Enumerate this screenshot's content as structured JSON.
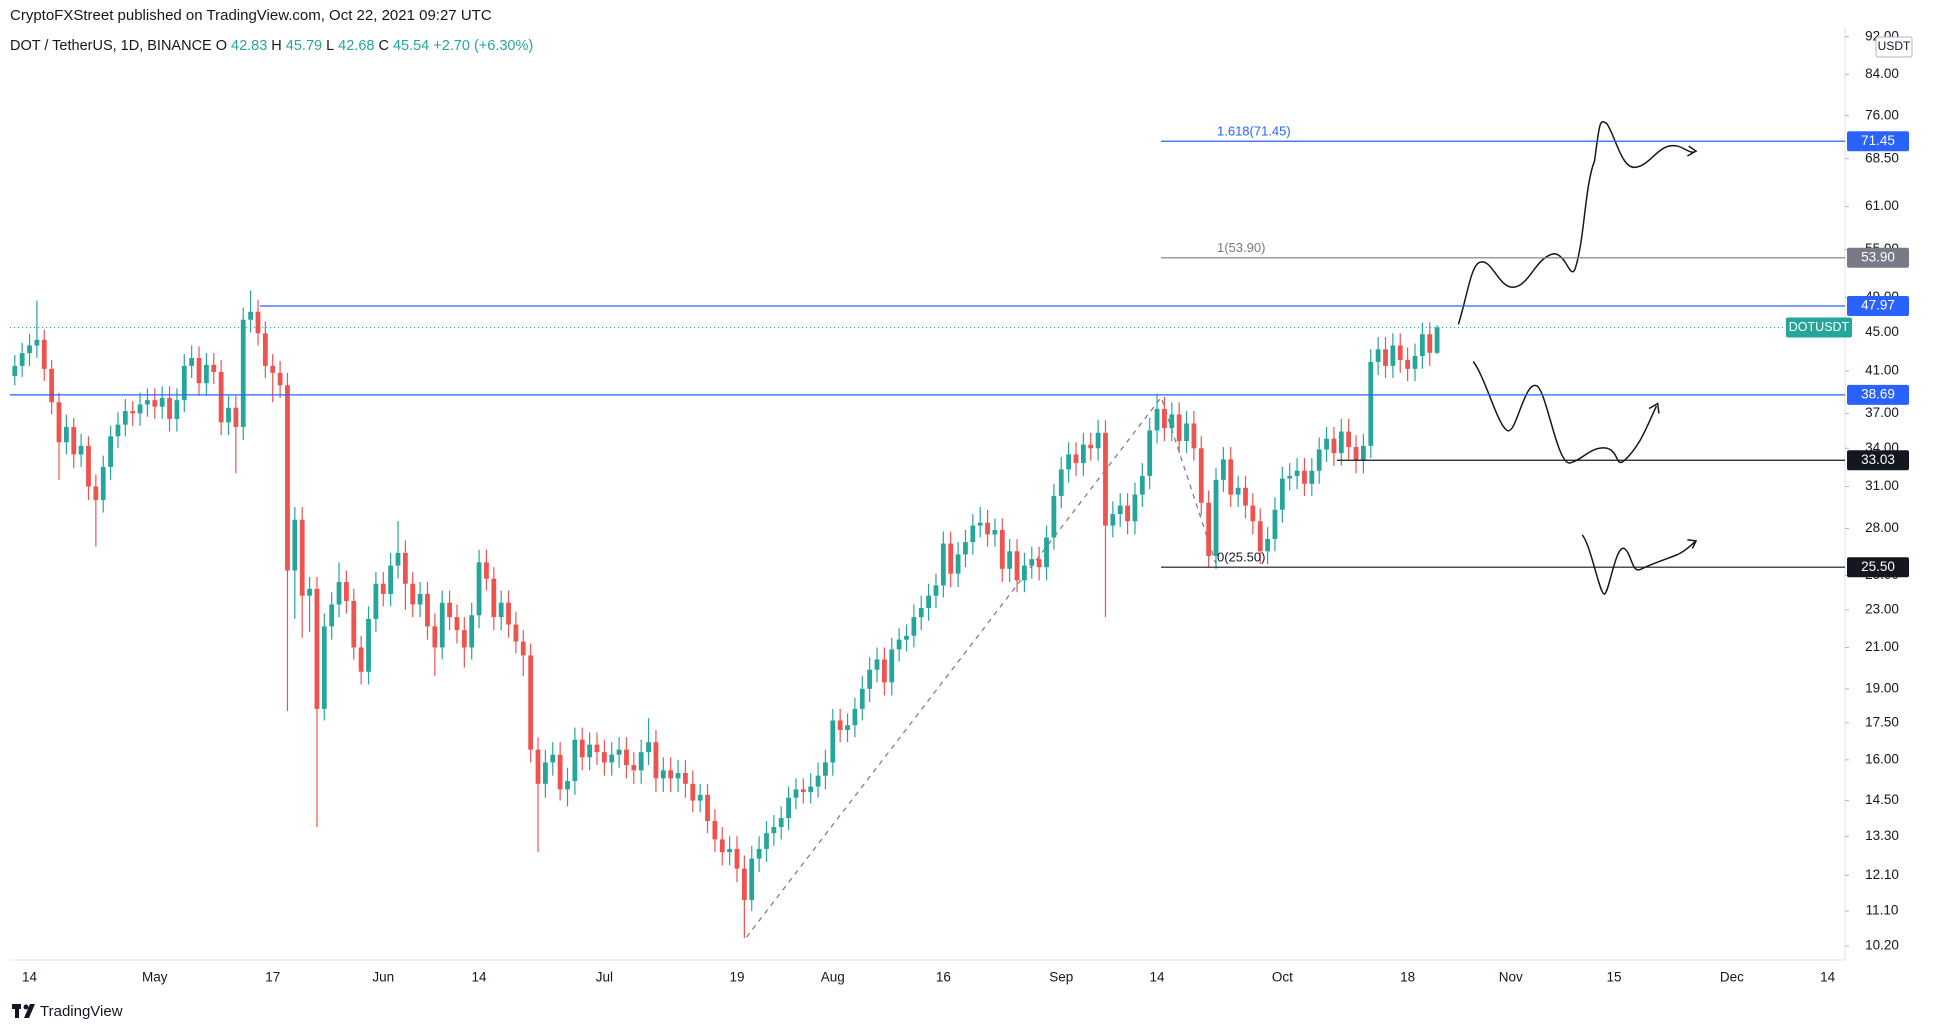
{
  "header": {
    "publisher": "CryptoFXStreet published on TradingView.com, Oct 22, 2021 09:27 UTC",
    "symbol": "DOT / TetherUS, 1D, BINANCE",
    "ohlc": [
      {
        "label": "O",
        "value": "42.83"
      },
      {
        "label": "H",
        "value": "45.79"
      },
      {
        "label": "L",
        "value": "42.68"
      },
      {
        "label": "C",
        "value": "45.54"
      }
    ],
    "change": "+2.70 (+6.30%)"
  },
  "footer": {
    "brand": "TradingView"
  },
  "chart_data": {
    "type": "candlestick",
    "log": true,
    "up_color": "#26a69a",
    "down_color": "#ef5350",
    "symbol_tag": "DOTUSDT",
    "currency": "USDT",
    "categories": [
      null,
      null,
      "14",
      null,
      null,
      null,
      null,
      null,
      null,
      null,
      null,
      null,
      null,
      null,
      null,
      null,
      null,
      null,
      null,
      "May",
      null,
      null,
      null,
      null,
      null,
      null,
      null,
      null,
      null,
      null,
      null,
      null,
      null,
      null,
      null,
      "17",
      null,
      null,
      null,
      null,
      null,
      null,
      null,
      null,
      null,
      null,
      null,
      null,
      null,
      null,
      "Jun",
      null,
      null,
      null,
      null,
      null,
      null,
      null,
      null,
      null,
      null,
      null,
      null,
      "14",
      null,
      null,
      null,
      null,
      null,
      null,
      null,
      null,
      null,
      null,
      null,
      null,
      null,
      null,
      null,
      null,
      "Jul",
      null,
      null,
      null,
      null,
      null,
      null,
      null,
      null,
      null,
      null,
      null,
      null,
      null,
      null,
      null,
      null,
      null,
      "19",
      null,
      null,
      null,
      null,
      null,
      null,
      null,
      null,
      null,
      null,
      null,
      null,
      "Aug",
      null,
      null,
      null,
      null,
      null,
      null,
      null,
      null,
      null,
      null,
      null,
      null,
      null,
      null,
      "16",
      null,
      null,
      null,
      null,
      null,
      null,
      null,
      null,
      null,
      null,
      null,
      null,
      null,
      null,
      null,
      "Sep",
      null,
      null,
      null,
      null,
      null,
      null,
      null,
      null,
      null,
      null,
      null,
      null,
      "14",
      null,
      null,
      null,
      null,
      null,
      null,
      null,
      null,
      null,
      null,
      null,
      null,
      null,
      null,
      null,
      null,
      "Oct",
      null,
      null,
      null,
      null,
      null,
      null,
      null,
      null,
      null,
      null,
      null,
      null,
      null,
      null,
      null,
      null,
      "18",
      null,
      null,
      null,
      null,
      null,
      null,
      null,
      null,
      null,
      null,
      null,
      null,
      null,
      "Nov",
      null,
      null,
      null,
      null,
      null,
      null,
      null,
      null,
      null,
      null,
      null,
      null,
      null,
      "15",
      null,
      null,
      null,
      null,
      null,
      null,
      null,
      null,
      null,
      null,
      null,
      null,
      null,
      null,
      null,
      "Dec",
      null,
      null,
      null,
      null,
      null,
      null,
      null,
      null,
      null,
      null,
      null,
      null,
      "14",
      null,
      null
    ],
    "open": [
      40.5,
      41.5,
      42.8,
      43.6,
      44.2,
      41.2,
      38.0,
      34.5,
      35.8,
      33.5,
      34.2,
      31.0,
      30.0,
      32.5,
      35.0,
      36.0,
      37.2,
      37.0,
      37.8,
      38.2,
      37.6,
      38.4,
      36.5,
      38.2,
      41.5,
      42.3,
      39.8,
      41.6,
      40.9,
      36.2,
      37.5,
      35.8,
      46.4,
      47.3,
      44.9,
      41.5,
      40.8,
      39.6,
      25.3,
      28.6,
      23.8,
      24.2,
      18.1,
      22.1,
      23.3,
      24.6,
      23.5,
      21.0,
      19.8,
      22.5,
      24.5,
      23.9,
      25.6,
      26.4,
      24.5,
      23.3,
      23.9,
      22.1,
      21.0,
      23.4,
      22.6,
      21.9,
      21.0,
      22.7,
      25.8,
      24.8,
      22.6,
      23.4,
      22.2,
      21.3,
      20.6,
      16.4,
      15.1,
      15.9,
      16.2,
      14.9,
      15.2,
      16.8,
      16.1,
      16.6,
      16.3,
      15.9,
      16.2,
      16.4,
      15.8,
      15.6,
      16.3,
      16.7,
      15.3,
      15.6,
      15.3,
      15.5,
      15.1,
      14.5,
      14.7,
      13.8,
      13.2,
      12.8,
      12.9,
      12.3,
      11.4,
      12.6,
      12.9,
      13.4,
      13.6,
      13.9,
      14.6,
      14.9,
      14.8,
      15.0,
      15.4,
      15.9,
      17.6,
      17.2,
      17.4,
      18.1,
      19.0,
      19.9,
      20.4,
      19.3,
      20.9,
      21.4,
      21.6,
      22.6,
      23.1,
      23.8,
      24.4,
      27.0,
      25.1,
      26.3,
      27.1,
      28.2,
      28.4,
      27.6,
      27.9,
      25.4,
      26.5,
      24.7,
      25.6,
      26.0,
      25.5,
      27.4,
      30.3,
      32.3,
      33.5,
      32.8,
      34.3,
      34.0,
      35.3,
      28.2,
      29.0,
      29.6,
      28.5,
      30.4,
      31.8,
      35.5,
      37.4,
      35.7,
      36.9,
      34.6,
      36.1,
      34.0,
      29.8,
      26.2,
      31.5,
      33.1,
      30.4,
      30.9,
      29.6,
      28.5,
      26.5,
      27.3,
      29.3,
      31.6,
      31.8,
      32.2,
      31.2,
      32.2,
      33.9,
      34.8,
      33.6,
      35.4,
      34.1,
      33.0,
      34.2,
      41.9,
      43.2,
      41.5,
      43.6,
      42.1,
      41.2,
      42.5,
      44.8,
      42.83,
      null,
      null,
      null,
      null,
      null,
      null,
      null,
      null,
      null,
      null,
      null,
      null,
      null,
      null,
      null,
      null,
      null,
      null,
      null,
      null,
      null,
      null,
      null,
      null,
      null,
      null,
      null,
      null,
      null,
      null,
      null,
      null,
      null,
      null,
      null,
      null,
      null,
      null,
      null,
      null,
      null,
      null,
      null,
      null,
      null,
      null,
      null,
      null,
      null,
      null,
      null,
      null,
      null,
      null,
      null
    ],
    "high": [
      42.6,
      43.9,
      44.8,
      48.6,
      45.3,
      42.1,
      38.9,
      36.9,
      36.6,
      35.2,
      35.0,
      31.9,
      33.4,
      35.9,
      37.1,
      38.3,
      38.1,
      38.9,
      39.3,
      39.3,
      39.5,
      39.5,
      39.3,
      42.7,
      43.6,
      43.5,
      42.8,
      42.8,
      42.1,
      38.6,
      38.6,
      47.8,
      49.8,
      48.7,
      46.2,
      42.7,
      42.0,
      40.8,
      29.5,
      29.5,
      24.9,
      24.9,
      22.8,
      24.0,
      25.8,
      25.3,
      24.2,
      21.6,
      23.2,
      25.2,
      25.2,
      26.4,
      28.5,
      27.2,
      25.2,
      24.6,
      24.6,
      22.8,
      24.1,
      24.1,
      23.3,
      22.6,
      23.4,
      26.6,
      26.6,
      25.5,
      24.1,
      24.1,
      22.9,
      21.9,
      21.2,
      16.9,
      16.4,
      16.7,
      16.7,
      15.7,
      17.3,
      17.3,
      17.1,
      17.1,
      16.8,
      16.7,
      16.9,
      16.9,
      16.3,
      16.8,
      17.7,
      17.2,
      16.1,
      16.1,
      16.0,
      16.0,
      15.6,
      15.1,
      15.1,
      14.2,
      13.6,
      13.3,
      13.3,
      12.7,
      13.0,
      13.3,
      13.8,
      14.0,
      14.3,
      15.0,
      15.3,
      15.3,
      15.5,
      15.9,
      16.4,
      18.1,
      18.1,
      17.9,
      18.6,
      19.6,
      20.5,
      21.0,
      21.0,
      21.5,
      22.0,
      22.2,
      23.3,
      23.8,
      24.5,
      25.1,
      27.8,
      27.8,
      27.1,
      27.9,
      29.0,
      29.5,
      29.3,
      28.7,
      28.7,
      27.3,
      27.3,
      26.4,
      26.8,
      26.8,
      28.2,
      31.2,
      33.3,
      34.5,
      34.5,
      35.3,
      35.3,
      36.4,
      36.4,
      29.9,
      30.5,
      30.5,
      31.3,
      32.8,
      36.6,
      38.8,
      38.5,
      38.0,
      38.0,
      37.2,
      37.2,
      35.0,
      30.7,
      32.4,
      34.1,
      34.1,
      31.8,
      31.8,
      30.5,
      29.4,
      28.1,
      30.2,
      32.5,
      32.8,
      33.2,
      33.2,
      33.2,
      34.9,
      35.8,
      35.8,
      36.5,
      36.5,
      35.1,
      35.2,
      43.2,
      44.5,
      44.5,
      44.9,
      44.9,
      43.4,
      43.8,
      46.1,
      46.1,
      45.79,
      null,
      null,
      null,
      null,
      null,
      null,
      null,
      null,
      null,
      null,
      null,
      null,
      null,
      null,
      null,
      null,
      null,
      null,
      null,
      null,
      null,
      null,
      null,
      null,
      null,
      null,
      null,
      null,
      null,
      null,
      null,
      null,
      null,
      null,
      null,
      null,
      null,
      null,
      null,
      null,
      null,
      null,
      null,
      null,
      null,
      null,
      null,
      null,
      null,
      null,
      null,
      null,
      null,
      null,
      null
    ],
    "low": [
      39.6,
      40.4,
      41.5,
      42.3,
      40.0,
      36.9,
      31.5,
      33.5,
      32.4,
      32.5,
      30.0,
      26.8,
      29.1,
      31.5,
      34.0,
      35.0,
      35.9,
      35.9,
      36.7,
      36.5,
      36.5,
      35.4,
      35.4,
      37.1,
      40.3,
      38.6,
      38.6,
      39.7,
      35.1,
      35.1,
      32.0,
      34.7,
      45.0,
      43.6,
      40.3,
      38.0,
      38.4,
      18.0,
      22.5,
      21.5,
      21.8,
      13.6,
      17.6,
      21.4,
      22.6,
      22.8,
      20.4,
      19.2,
      19.2,
      21.8,
      23.2,
      23.2,
      24.8,
      23.0,
      22.6,
      22.6,
      21.4,
      19.6,
      20.4,
      21.9,
      21.2,
      20.0,
      20.4,
      22.0,
      24.1,
      21.9,
      21.9,
      21.5,
      20.7,
      19.6,
      15.9,
      12.8,
      14.6,
      15.4,
      14.5,
      14.3,
      14.7,
      15.6,
      15.6,
      15.8,
      15.4,
      15.4,
      15.7,
      15.3,
      15.1,
      15.1,
      15.8,
      14.8,
      14.8,
      14.8,
      14.8,
      14.6,
      14.1,
      14.1,
      13.4,
      12.8,
      12.4,
      12.4,
      11.9,
      10.4,
      11.1,
      12.2,
      12.5,
      13.0,
      13.2,
      13.5,
      14.2,
      14.4,
      14.4,
      14.6,
      14.9,
      15.4,
      16.7,
      16.7,
      16.9,
      17.6,
      18.4,
      19.3,
      18.7,
      18.7,
      20.3,
      20.8,
      21.0,
      21.9,
      22.4,
      23.1,
      23.7,
      24.3,
      24.3,
      25.5,
      26.3,
      27.4,
      26.8,
      26.8,
      24.6,
      24.6,
      24.0,
      24.0,
      24.8,
      24.7,
      24.7,
      26.6,
      29.4,
      31.3,
      31.8,
      31.8,
      33.0,
      33.0,
      22.6,
      27.4,
      28.1,
      27.6,
      27.6,
      29.5,
      30.8,
      34.4,
      34.6,
      34.6,
      33.6,
      33.6,
      33.0,
      28.9,
      25.5,
      25.4,
      30.6,
      29.5,
      29.5,
      28.7,
      27.6,
      25.7,
      25.7,
      26.5,
      28.4,
      30.7,
      30.8,
      30.3,
      30.3,
      31.2,
      32.9,
      32.6,
      32.6,
      33.1,
      32.0,
      32.0,
      33.2,
      40.6,
      40.3,
      40.3,
      40.8,
      40.0,
      40.0,
      41.2,
      41.5,
      42.68,
      null,
      null,
      null,
      null,
      null,
      null,
      null,
      null,
      null,
      null,
      null,
      null,
      null,
      null,
      null,
      null,
      null,
      null,
      null,
      null,
      null,
      null,
      null,
      null,
      null,
      null,
      null,
      null,
      null,
      null,
      null,
      null,
      null,
      null,
      null,
      null,
      null,
      null,
      null,
      null,
      null,
      null,
      null,
      null,
      null,
      null,
      null,
      null,
      null,
      null,
      null,
      null,
      null,
      null,
      null
    ],
    "close": [
      41.5,
      42.8,
      43.6,
      44.2,
      41.2,
      38.0,
      34.5,
      35.8,
      33.5,
      34.2,
      31.0,
      30.0,
      32.5,
      35.0,
      36.0,
      37.2,
      37.0,
      37.8,
      38.2,
      37.6,
      38.4,
      36.5,
      38.2,
      41.5,
      42.3,
      39.8,
      41.6,
      40.9,
      36.2,
      37.5,
      35.8,
      46.4,
      47.3,
      44.9,
      41.5,
      40.8,
      39.6,
      25.3,
      28.6,
      23.8,
      24.2,
      18.1,
      22.1,
      23.3,
      24.6,
      23.5,
      21.0,
      19.8,
      22.5,
      24.5,
      23.9,
      25.6,
      26.4,
      24.5,
      23.3,
      23.9,
      22.1,
      21.0,
      23.4,
      22.6,
      21.9,
      21.0,
      22.7,
      25.8,
      24.8,
      22.6,
      23.4,
      22.2,
      21.3,
      20.6,
      16.4,
      15.1,
      15.9,
      16.2,
      14.9,
      15.2,
      16.8,
      16.1,
      16.6,
      16.3,
      15.9,
      16.2,
      16.4,
      15.8,
      15.6,
      16.3,
      16.7,
      15.3,
      15.6,
      15.3,
      15.5,
      15.1,
      14.5,
      14.7,
      13.8,
      13.2,
      12.8,
      12.9,
      12.3,
      11.4,
      12.6,
      12.9,
      13.4,
      13.6,
      13.9,
      14.6,
      14.9,
      14.8,
      15.0,
      15.4,
      15.9,
      17.6,
      17.2,
      17.4,
      18.1,
      19.0,
      19.9,
      20.4,
      19.3,
      20.9,
      21.4,
      21.6,
      22.6,
      23.1,
      23.8,
      24.4,
      27.0,
      25.1,
      26.3,
      27.1,
      28.2,
      28.4,
      27.6,
      27.9,
      25.4,
      26.5,
      24.7,
      25.6,
      26.0,
      25.5,
      27.4,
      30.3,
      32.3,
      33.5,
      32.8,
      34.3,
      34.0,
      35.3,
      28.2,
      29.0,
      29.6,
      28.5,
      30.4,
      31.8,
      35.5,
      37.4,
      35.7,
      36.9,
      34.6,
      36.1,
      34.0,
      29.8,
      26.2,
      31.5,
      33.1,
      30.4,
      30.9,
      29.6,
      28.5,
      26.5,
      27.3,
      29.3,
      31.6,
      31.8,
      32.2,
      31.2,
      32.2,
      33.9,
      34.8,
      33.6,
      35.4,
      34.1,
      33.0,
      34.2,
      41.9,
      43.2,
      41.5,
      43.6,
      42.1,
      41.2,
      42.5,
      44.8,
      42.83,
      45.54,
      null,
      null,
      null,
      null,
      null,
      null,
      null,
      null,
      null,
      null,
      null,
      null,
      null,
      null,
      null,
      null,
      null,
      null,
      null,
      null,
      null,
      null,
      null,
      null,
      null,
      null,
      null,
      null,
      null,
      null,
      null,
      null,
      null,
      null,
      null,
      null,
      null,
      null,
      null,
      null,
      null,
      null,
      null,
      null,
      null,
      null,
      null,
      null,
      null,
      null,
      null,
      null,
      null,
      null,
      null
    ],
    "ylim": [
      9.86,
      94.2
    ],
    "yticks": [
      {
        "value": 92,
        "label": "92.00"
      },
      {
        "value": 84,
        "label": "84.00"
      },
      {
        "value": 76,
        "label": "76.00"
      },
      {
        "value": 68.5,
        "label": "68.50"
      },
      {
        "value": 61,
        "label": "61.00"
      },
      {
        "value": 55,
        "label": "55.00"
      },
      {
        "value": 49,
        "label": "49.00"
      },
      {
        "value": 45,
        "label": "45.00"
      },
      {
        "value": 41,
        "label": "41.00"
      },
      {
        "value": 37,
        "label": "37.00"
      },
      {
        "value": 34,
        "label": "34.00"
      },
      {
        "value": 31,
        "label": "31.00"
      },
      {
        "value": 28,
        "label": "28.00"
      },
      {
        "value": 25,
        "label": "25.00"
      },
      {
        "value": 23,
        "label": "23.00"
      },
      {
        "value": 21,
        "label": "21.00"
      },
      {
        "value": 19,
        "label": "19.00"
      },
      {
        "value": 17.5,
        "label": "17.50"
      },
      {
        "value": 16,
        "label": "16.00"
      },
      {
        "value": 14.5,
        "label": "14.50"
      },
      {
        "value": 13.3,
        "label": "13.30"
      },
      {
        "value": 12.1,
        "label": "12.10"
      },
      {
        "value": 11.1,
        "label": "11.10"
      },
      {
        "value": 10.2,
        "label": "10.20"
      }
    ],
    "levels": [
      {
        "value": 71.45,
        "color": "#2962ff",
        "note": "1.618(71.45)"
      },
      {
        "value": 53.9,
        "label": "53.90",
        "color": "#787b86",
        "note": "1(53.90)"
      },
      {
        "value": 47.97,
        "color": "#2962ff"
      },
      {
        "value": 38.69,
        "color": "#2962ff"
      },
      {
        "value": 33.03,
        "color": "#131722"
      },
      {
        "value": 25.5,
        "label": "25.50",
        "color": "#131722",
        "note": "0(25.50)"
      }
    ]
  }
}
